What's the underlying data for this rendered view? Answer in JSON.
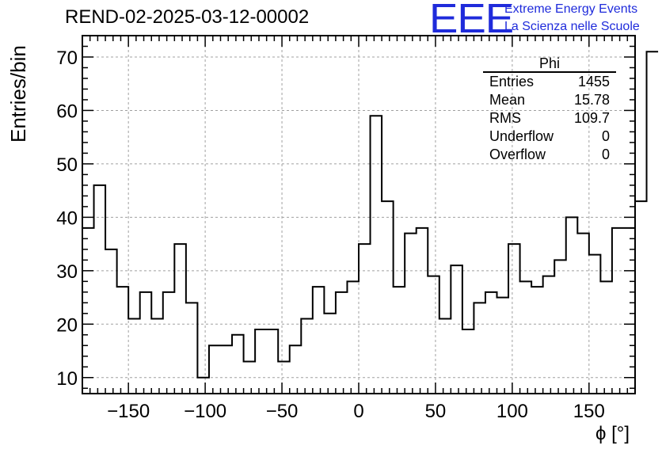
{
  "title": "REND-02-2025-03-12-00002",
  "logo": {
    "text": "EEE",
    "line1": "Extreme Energy Events",
    "line2": "La Scienza nelle Scuole",
    "color": "#1f2bdb"
  },
  "stats": {
    "name": "Phi",
    "rows": [
      {
        "label": "Entries",
        "value": "1455"
      },
      {
        "label": "Mean",
        "value": "15.78"
      },
      {
        "label": "RMS",
        "value": "109.7"
      },
      {
        "label": "Underflow",
        "value": "0"
      },
      {
        "label": "Overflow",
        "value": "0"
      }
    ]
  },
  "chart_data": {
    "type": "bar",
    "style": "step-histogram",
    "title": "REND-02-2025-03-12-00002",
    "xlabel": "ϕ [°]",
    "ylabel": "Entries/bin",
    "xlim": [
      -180,
      180
    ],
    "ylim": [
      7,
      74
    ],
    "grid": true,
    "bin_width": 7.5,
    "bin_edges_start": -180,
    "values": [
      38,
      46,
      34,
      27,
      21,
      26,
      21,
      26,
      35,
      24,
      10,
      16,
      16,
      18,
      13,
      19,
      19,
      13,
      16,
      21,
      27,
      22,
      26,
      28,
      35,
      59,
      43,
      27,
      37,
      38,
      29,
      21,
      31,
      19,
      24,
      26,
      25,
      35,
      28,
      27,
      29,
      32,
      40,
      37,
      33,
      28,
      38,
      38,
      43,
      71
    ],
    "x_ticks": [
      -150,
      -100,
      -50,
      0,
      50,
      100,
      150
    ],
    "x_tick_labels": [
      "−150",
      "−100",
      "−50",
      "0",
      "50",
      "100",
      "150"
    ],
    "y_ticks": [
      10,
      20,
      30,
      40,
      50,
      60,
      70
    ],
    "y_tick_labels": [
      "10",
      "20",
      "30",
      "40",
      "50",
      "60",
      "70"
    ],
    "line_color": "#000000",
    "grid_color": "#a0a0a0"
  }
}
